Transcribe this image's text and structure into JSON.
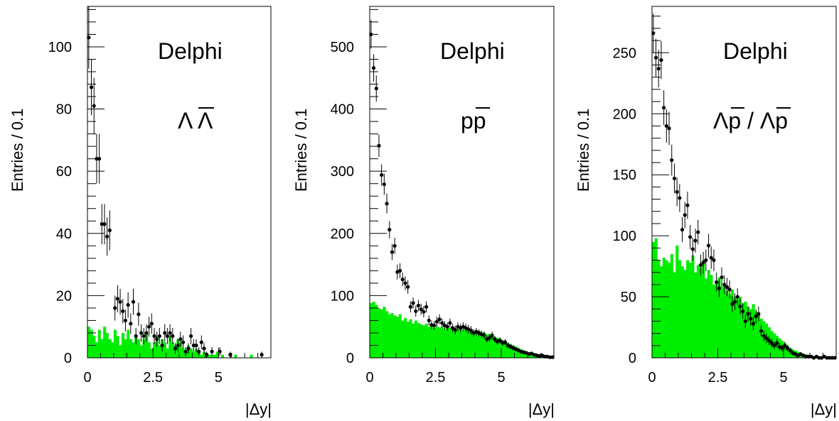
{
  "colors": {
    "histogram_fill": "#00ee00",
    "markers": "#000000",
    "frame": "#000000",
    "background": "#ffffff"
  },
  "chart_data": [
    {
      "type": "bar",
      "overlay": "scatter with error bars",
      "ylabel": "Entries / 0.1",
      "xlabel": "|Δy|",
      "brand": "Delphi",
      "label_main": "Λ",
      "label_bar": "Λ",
      "xlim": [
        0,
        7.0
      ],
      "ylim": [
        0,
        113
      ],
      "xticks": [
        0,
        2.5,
        5
      ],
      "xtick_labels": [
        "0",
        "2.5",
        "5"
      ],
      "yticks": [
        0,
        20,
        40,
        60,
        80,
        100
      ],
      "ytick_labels": [
        "0",
        "20",
        "40",
        "60",
        "80",
        "100"
      ],
      "bin_width": 0.1,
      "mc_histogram": [
        10,
        9,
        7,
        5,
        9,
        6,
        10,
        8,
        6,
        5,
        9,
        7,
        4,
        8,
        6,
        9,
        6,
        5,
        7,
        6,
        4,
        6,
        8,
        5,
        3,
        5,
        7,
        4,
        6,
        5,
        3,
        7,
        5,
        4,
        6,
        5,
        3,
        2,
        4,
        3,
        2,
        3,
        2,
        1,
        2,
        1,
        1,
        1,
        1,
        2,
        0,
        1,
        0,
        0,
        0,
        0,
        1,
        0,
        0,
        0,
        0,
        0,
        1,
        0,
        0,
        0,
        0,
        0,
        0,
        0
      ],
      "data_points": {
        "x": [
          0.05,
          0.15,
          0.25,
          0.35,
          0.45,
          0.55,
          0.65,
          0.75,
          0.85,
          1.05,
          1.15,
          1.25,
          1.35,
          1.45,
          1.55,
          1.65,
          1.75,
          1.85,
          1.95,
          2.05,
          2.15,
          2.25,
          2.35,
          2.45,
          2.55,
          2.65,
          2.75,
          2.85,
          2.95,
          3.05,
          3.15,
          3.25,
          3.35,
          3.45,
          3.55,
          3.65,
          3.75,
          3.85,
          3.95,
          4.05,
          4.15,
          4.25,
          4.35,
          4.45,
          4.55,
          4.75,
          5.05,
          5.45,
          6.65
        ],
        "y": [
          103,
          87,
          81,
          64,
          64,
          43,
          43,
          39,
          41,
          16,
          19,
          18,
          15,
          12,
          17,
          11,
          18,
          7,
          14,
          8,
          7,
          8,
          10,
          11,
          7,
          6,
          7,
          4,
          8,
          7,
          8,
          7,
          3,
          4,
          6,
          5,
          2,
          3,
          7,
          4,
          4,
          2,
          5,
          3,
          1,
          2,
          2,
          1,
          1
        ],
        "err": [
          10,
          9,
          9,
          8,
          8,
          6.5,
          6.5,
          6.2,
          6.4,
          4,
          4.4,
          4.2,
          3.9,
          3.5,
          4.1,
          3.3,
          4.2,
          2.6,
          3.7,
          2.8,
          2.6,
          2.8,
          3.2,
          3.3,
          2.6,
          2.4,
          2.6,
          2,
          2.8,
          2.6,
          2.8,
          2.6,
          1.7,
          2,
          2.4,
          2.2,
          1.4,
          1.7,
          2.6,
          2,
          2,
          1.4,
          2.2,
          1.7,
          1,
          1.4,
          1.4,
          1,
          1
        ]
      }
    },
    {
      "type": "bar",
      "overlay": "scatter with error bars",
      "ylabel": "Entries / 0.1",
      "xlabel": "|Δy|",
      "brand": "Delphi",
      "label_main": "pp",
      "label_bar": "p",
      "xlim": [
        0,
        7.0
      ],
      "ylim": [
        0,
        565
      ],
      "xticks": [
        0,
        2.5,
        5
      ],
      "xtick_labels": [
        "0",
        "2.5",
        "5"
      ],
      "yticks": [
        0,
        100,
        200,
        300,
        400,
        500
      ],
      "ytick_labels": [
        "0",
        "100",
        "200",
        "300",
        "400",
        "500"
      ],
      "bin_width": 0.1,
      "mc_histogram": [
        88,
        90,
        85,
        80,
        78,
        82,
        75,
        70,
        72,
        68,
        66,
        70,
        60,
        64,
        58,
        62,
        55,
        60,
        56,
        54,
        52,
        55,
        50,
        52,
        48,
        50,
        49,
        50,
        47,
        50,
        48,
        46,
        48,
        46,
        47,
        45,
        46,
        44,
        45,
        43,
        42,
        43,
        40,
        41,
        38,
        38,
        36,
        34,
        32,
        30,
        28,
        26,
        24,
        22,
        20,
        18,
        16,
        14,
        12,
        10,
        9,
        8,
        7,
        6,
        5,
        4,
        3,
        3,
        2,
        2
      ],
      "data_points": {
        "x": [
          0.05,
          0.15,
          0.25,
          0.35,
          0.45,
          0.55,
          0.65,
          0.75,
          0.85,
          0.95,
          1.05,
          1.15,
          1.25,
          1.35,
          1.45,
          1.55,
          1.65,
          1.75,
          1.85,
          1.95,
          2.05,
          2.15,
          2.25,
          2.35,
          2.45,
          2.55,
          2.65,
          2.75,
          2.85,
          2.95,
          3.05,
          3.15,
          3.25,
          3.35,
          3.45,
          3.55,
          3.65,
          3.75,
          3.85,
          3.95,
          4.05,
          4.15,
          4.25,
          4.35,
          4.45,
          4.55,
          4.65,
          4.75,
          4.85,
          4.95,
          5.05,
          5.15,
          5.25,
          5.35,
          5.45,
          5.55,
          5.65,
          5.75,
          5.85,
          5.95,
          6.05,
          6.15,
          6.25,
          6.35,
          6.45,
          6.55,
          6.65,
          6.75,
          6.85,
          6.95
        ],
        "y": [
          520,
          466,
          433,
          341,
          294,
          279,
          248,
          206,
          170,
          180,
          138,
          140,
          126,
          120,
          114,
          82,
          88,
          75,
          84,
          78,
          74,
          82,
          60,
          53,
          52,
          58,
          62,
          56,
          52,
          50,
          56,
          48,
          45,
          50,
          48,
          50,
          48,
          46,
          44,
          40,
          42,
          40,
          38,
          36,
          30,
          32,
          36,
          30,
          26,
          28,
          24,
          25,
          20,
          18,
          16,
          14,
          12,
          10,
          9,
          8,
          6,
          7,
          5,
          4,
          3,
          4,
          2,
          2,
          1,
          1
        ],
        "err": [
          23,
          22,
          21,
          18,
          17,
          17,
          16,
          14,
          13,
          13,
          12,
          12,
          11,
          11,
          11,
          9,
          9,
          9,
          9,
          9,
          9,
          9,
          8,
          7,
          7,
          8,
          8,
          7,
          7,
          7,
          7,
          7,
          7,
          7,
          7,
          7,
          7,
          7,
          7,
          6,
          6,
          6,
          6,
          6,
          5,
          6,
          6,
          5,
          5,
          5,
          5,
          5,
          4.5,
          4.2,
          4,
          3.7,
          3.5,
          3.2,
          3,
          2.8,
          2.4,
          2.6,
          2.2,
          2,
          1.7,
          2,
          1.4,
          1.4,
          1,
          1
        ]
      }
    },
    {
      "type": "bar",
      "overlay": "scatter with error bars",
      "ylabel": "Entries / 0.1",
      "xlabel": "|Δy|",
      "brand": "Delphi",
      "label_main": "Λp / Λp",
      "label_bar": "p",
      "xlim": [
        0,
        7.0
      ],
      "ylim": [
        0,
        288
      ],
      "xticks": [
        0,
        2.5,
        5
      ],
      "xtick_labels": [
        "0",
        "2.5",
        "5"
      ],
      "yticks": [
        0,
        50,
        100,
        150,
        200,
        250
      ],
      "ytick_labels": [
        "0",
        "50",
        "100",
        "150",
        "200",
        "250"
      ],
      "bin_width": 0.1,
      "mc_histogram": [
        95,
        98,
        80,
        75,
        82,
        80,
        78,
        85,
        70,
        92,
        80,
        75,
        72,
        80,
        78,
        84,
        70,
        76,
        74,
        80,
        65,
        72,
        68,
        60,
        62,
        66,
        58,
        60,
        55,
        52,
        56,
        50,
        48,
        50,
        45,
        46,
        42,
        40,
        44,
        38,
        36,
        32,
        30,
        28,
        25,
        22,
        20,
        18,
        16,
        14,
        12,
        10,
        8,
        7,
        6,
        5,
        4,
        3,
        3,
        2,
        2,
        1,
        1,
        1,
        0,
        1,
        0,
        0,
        0,
        0
      ],
      "data_points": {
        "x": [
          0.05,
          0.15,
          0.25,
          0.35,
          0.45,
          0.55,
          0.65,
          0.75,
          0.85,
          0.95,
          1.05,
          1.15,
          1.25,
          1.35,
          1.45,
          1.55,
          1.65,
          1.75,
          1.85,
          1.95,
          2.05,
          2.15,
          2.25,
          2.35,
          2.45,
          2.55,
          2.65,
          2.75,
          2.85,
          2.95,
          3.05,
          3.15,
          3.25,
          3.35,
          3.45,
          3.55,
          3.65,
          3.75,
          3.85,
          3.95,
          4.05,
          4.15,
          4.25,
          4.35,
          4.45,
          4.55,
          4.65,
          4.75,
          4.85,
          4.95,
          5.05,
          5.15,
          5.25,
          5.35,
          5.45,
          5.55,
          5.65,
          5.75,
          5.85,
          5.95,
          6.05,
          6.15,
          6.25,
          6.35,
          6.45,
          6.55,
          6.65,
          6.75,
          6.85,
          6.95
        ],
        "y": [
          266,
          246,
          237,
          244,
          205,
          190,
          188,
          162,
          147,
          136,
          131,
          105,
          117,
          125,
          99,
          89,
          96,
          103,
          76,
          78,
          80,
          92,
          82,
          80,
          62,
          57,
          66,
          60,
          58,
          56,
          44,
          46,
          50,
          42,
          38,
          30,
          36,
          32,
          28,
          34,
          36,
          22,
          18,
          16,
          14,
          12,
          10,
          12,
          9,
          8,
          10,
          8,
          6,
          4,
          3,
          2,
          3,
          2,
          1,
          1,
          1,
          0,
          1,
          0,
          0,
          1,
          0,
          0,
          0,
          0
        ],
        "err": [
          16,
          15.5,
          15.4,
          15.6,
          14.3,
          13.8,
          13.7,
          12.7,
          12.1,
          11.7,
          11.4,
          10.2,
          10.8,
          11.2,
          9.9,
          9.4,
          9.8,
          10.1,
          8.7,
          8.8,
          8.9,
          9.6,
          9.1,
          8.9,
          7.9,
          7.5,
          8.1,
          7.7,
          7.6,
          7.5,
          6.6,
          6.8,
          7.1,
          6.5,
          6.2,
          5.5,
          6,
          5.7,
          5.3,
          5.8,
          6,
          4.7,
          4.2,
          4,
          3.7,
          3.5,
          3.2,
          3.5,
          3,
          2.8,
          3.2,
          2.8,
          2.4,
          2,
          1.7,
          1.4,
          1.7,
          1.4,
          1,
          1,
          1,
          0,
          1,
          0,
          0,
          1,
          0,
          0,
          0,
          0
        ]
      }
    }
  ]
}
